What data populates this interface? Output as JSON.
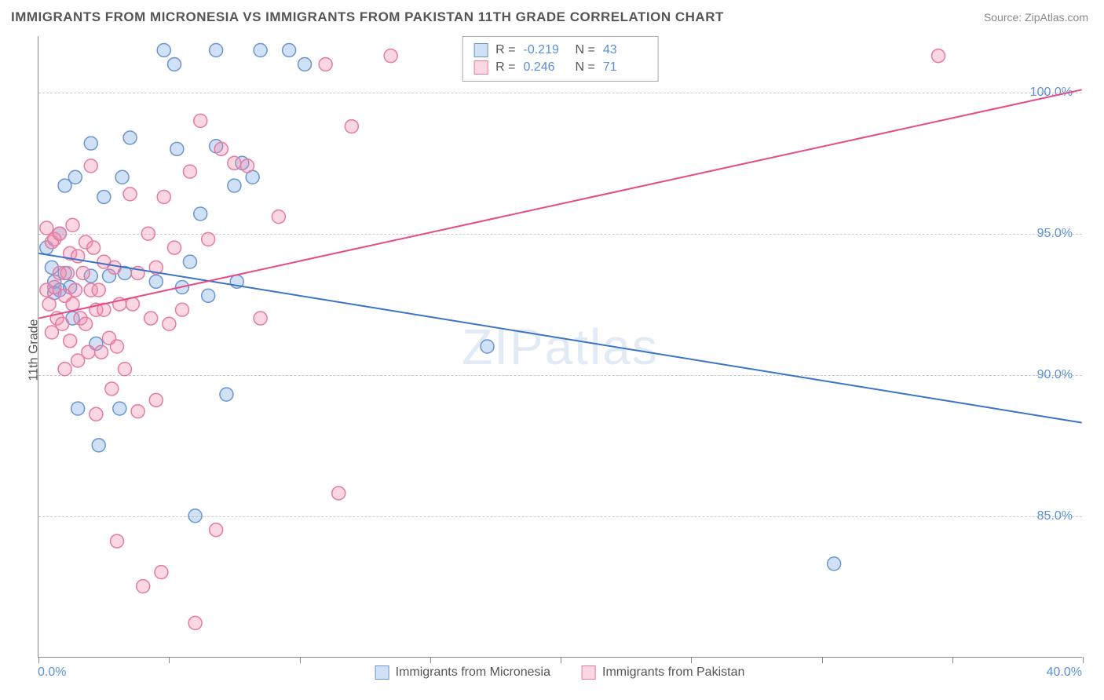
{
  "title": "IMMIGRANTS FROM MICRONESIA VS IMMIGRANTS FROM PAKISTAN 11TH GRADE CORRELATION CHART",
  "source": "Source: ZipAtlas.com",
  "ylabel": "11th Grade",
  "watermark": "ZIPatlas",
  "chart": {
    "type": "scatter",
    "xlim": [
      0,
      40
    ],
    "ylim": [
      80,
      102
    ],
    "xtick_positions": [
      0,
      5,
      10,
      15,
      20,
      25,
      30,
      35,
      40
    ],
    "ytick_positions": [
      85,
      90,
      95,
      100
    ],
    "ytick_labels": [
      "85.0%",
      "90.0%",
      "95.0%",
      "100.0%"
    ],
    "xstart_label": "0.0%",
    "xend_label": "40.0%",
    "background_color": "#ffffff",
    "grid_color": "#cccccc",
    "axis_color": "#888888",
    "point_radius": 8.5,
    "point_stroke_width": 1.5,
    "line_width": 2,
    "series": [
      {
        "name": "Immigrants from Micronesia",
        "fill_color": "rgba(120, 165, 225, 0.35)",
        "stroke_color": "#6a95d0",
        "line_color": "#3b74c4",
        "R": "-0.219",
        "N": "43",
        "trend": {
          "x1": 0,
          "y1": 94.3,
          "x2": 40,
          "y2": 88.3
        },
        "points": [
          [
            0.3,
            94.5
          ],
          [
            0.5,
            93.8
          ],
          [
            0.6,
            92.9
          ],
          [
            0.6,
            93.3
          ],
          [
            0.8,
            93.0
          ],
          [
            0.8,
            95.0
          ],
          [
            1.0,
            93.6
          ],
          [
            1.0,
            96.7
          ],
          [
            1.2,
            93.1
          ],
          [
            1.3,
            92.0
          ],
          [
            1.4,
            97.0
          ],
          [
            1.5,
            88.8
          ],
          [
            2.0,
            98.2
          ],
          [
            2.0,
            93.5
          ],
          [
            2.2,
            91.1
          ],
          [
            2.3,
            87.5
          ],
          [
            2.5,
            96.3
          ],
          [
            2.7,
            93.5
          ],
          [
            3.1,
            88.8
          ],
          [
            3.2,
            97.0
          ],
          [
            3.3,
            93.6
          ],
          [
            3.5,
            98.4
          ],
          [
            4.5,
            93.3
          ],
          [
            4.8,
            101.5
          ],
          [
            5.2,
            101.0
          ],
          [
            5.3,
            98.0
          ],
          [
            5.5,
            93.1
          ],
          [
            5.8,
            94.0
          ],
          [
            6.0,
            85.0
          ],
          [
            6.2,
            95.7
          ],
          [
            6.5,
            92.8
          ],
          [
            6.8,
            98.1
          ],
          [
            6.8,
            101.5
          ],
          [
            7.2,
            89.3
          ],
          [
            7.5,
            96.7
          ],
          [
            7.6,
            93.3
          ],
          [
            7.8,
            97.5
          ],
          [
            8.2,
            97.0
          ],
          [
            8.5,
            101.5
          ],
          [
            9.6,
            101.5
          ],
          [
            10.2,
            101.0
          ],
          [
            17.2,
            91.0
          ],
          [
            30.5,
            83.3
          ]
        ]
      },
      {
        "name": "Immigrants from Pakistan",
        "fill_color": "rgba(240, 140, 175, 0.35)",
        "stroke_color": "#e57ba0",
        "line_color": "#e64a87",
        "R": "0.246",
        "N": "71",
        "trend": {
          "x1": 0,
          "y1": 92.0,
          "x2": 40,
          "y2": 100.1
        },
        "points": [
          [
            0.3,
            95.2
          ],
          [
            0.3,
            93.0
          ],
          [
            0.4,
            92.5
          ],
          [
            0.5,
            91.5
          ],
          [
            0.5,
            94.7
          ],
          [
            0.6,
            93.1
          ],
          [
            0.6,
            94.8
          ],
          [
            0.7,
            92.0
          ],
          [
            0.8,
            95.0
          ],
          [
            0.8,
            93.6
          ],
          [
            0.9,
            91.8
          ],
          [
            1.0,
            92.8
          ],
          [
            1.0,
            90.2
          ],
          [
            1.1,
            93.6
          ],
          [
            1.2,
            91.2
          ],
          [
            1.2,
            94.3
          ],
          [
            1.3,
            92.5
          ],
          [
            1.3,
            95.3
          ],
          [
            1.4,
            93.0
          ],
          [
            1.5,
            94.2
          ],
          [
            1.5,
            90.5
          ],
          [
            1.6,
            92.0
          ],
          [
            1.7,
            93.6
          ],
          [
            1.8,
            91.8
          ],
          [
            1.8,
            94.7
          ],
          [
            1.9,
            90.8
          ],
          [
            2.0,
            93.0
          ],
          [
            2.0,
            97.4
          ],
          [
            2.1,
            94.5
          ],
          [
            2.2,
            92.3
          ],
          [
            2.2,
            88.6
          ],
          [
            2.3,
            93.0
          ],
          [
            2.4,
            90.8
          ],
          [
            2.5,
            92.3
          ],
          [
            2.5,
            94.0
          ],
          [
            2.7,
            91.3
          ],
          [
            2.8,
            89.5
          ],
          [
            2.9,
            93.8
          ],
          [
            3.0,
            91.0
          ],
          [
            3.0,
            84.1
          ],
          [
            3.1,
            92.5
          ],
          [
            3.3,
            90.2
          ],
          [
            3.5,
            96.4
          ],
          [
            3.6,
            92.5
          ],
          [
            3.8,
            88.7
          ],
          [
            3.8,
            93.6
          ],
          [
            4.0,
            82.5
          ],
          [
            4.2,
            95.0
          ],
          [
            4.3,
            92.0
          ],
          [
            4.5,
            93.8
          ],
          [
            4.5,
            89.1
          ],
          [
            4.7,
            83.0
          ],
          [
            4.8,
            96.3
          ],
          [
            5.0,
            91.8
          ],
          [
            5.2,
            94.5
          ],
          [
            5.5,
            92.3
          ],
          [
            5.8,
            97.2
          ],
          [
            6.0,
            81.2
          ],
          [
            6.2,
            99.0
          ],
          [
            6.5,
            94.8
          ],
          [
            6.8,
            84.5
          ],
          [
            7.0,
            98.0
          ],
          [
            7.5,
            97.5
          ],
          [
            8.0,
            97.4
          ],
          [
            8.5,
            92.0
          ],
          [
            9.2,
            95.6
          ],
          [
            11.0,
            101.0
          ],
          [
            11.5,
            85.8
          ],
          [
            12.0,
            98.8
          ],
          [
            13.5,
            101.3
          ],
          [
            34.5,
            101.3
          ]
        ]
      }
    ]
  },
  "stats_box": {
    "rows": [
      {
        "R_label": "R =",
        "R_value": "-0.219",
        "N_label": "N =",
        "N_value": "43",
        "swatch_fill": "rgba(120, 165, 225, 0.35)",
        "swatch_stroke": "#6a95d0"
      },
      {
        "R_label": "R =",
        "R_value": "0.246",
        "N_label": "N =",
        "N_value": "71",
        "swatch_fill": "rgba(240, 140, 175, 0.35)",
        "swatch_stroke": "#e57ba0"
      }
    ]
  },
  "bottom_legend": [
    {
      "label": "Immigrants from Micronesia",
      "fill": "rgba(120, 165, 225, 0.35)",
      "stroke": "#6a95d0"
    },
    {
      "label": "Immigrants from Pakistan",
      "fill": "rgba(240, 140, 175, 0.35)",
      "stroke": "#e57ba0"
    }
  ]
}
